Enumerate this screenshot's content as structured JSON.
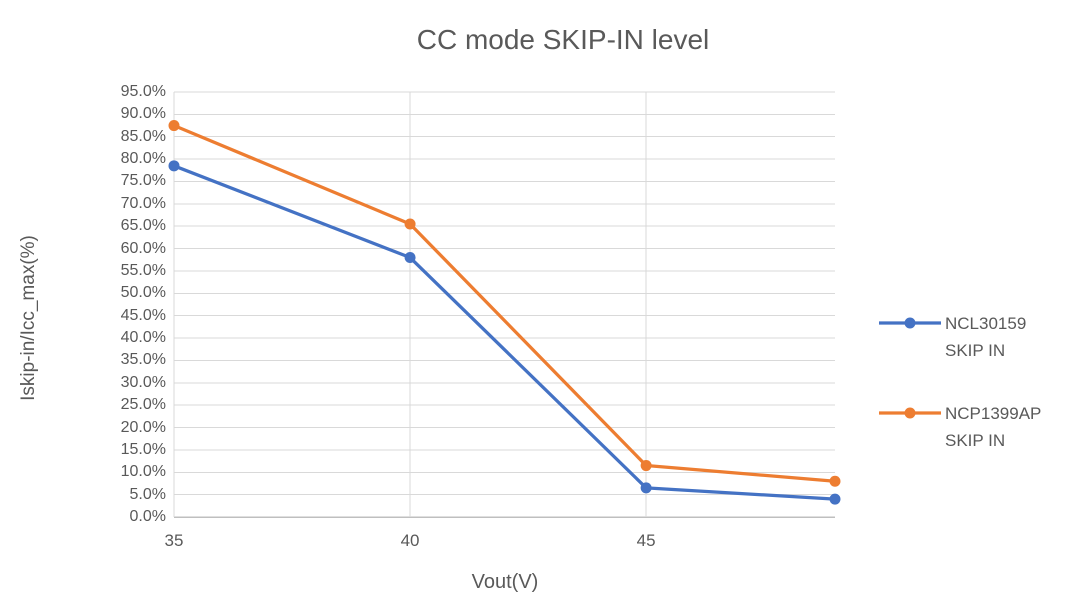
{
  "chart_data": {
    "type": "line",
    "title": "CC mode SKIP-IN level",
    "xlabel": "Vout(V)",
    "ylabel": "Iskip-in/Icc_max(%)",
    "xlim": [
      35,
      49
    ],
    "ylim": [
      0,
      95
    ],
    "x_tick_values": [
      35,
      40,
      45
    ],
    "x_tick_labels": [
      "35",
      "40",
      "45"
    ],
    "y_tick_step": 5,
    "y_tick_labels": [
      "0.0%",
      "5.0%",
      "10.0%",
      "15.0%",
      "20.0%",
      "25.0%",
      "30.0%",
      "35.0%",
      "40.0%",
      "45.0%",
      "50.0%",
      "55.0%",
      "60.0%",
      "65.0%",
      "70.0%",
      "75.0%",
      "80.0%",
      "85.0%",
      "90.0%",
      "95.0%"
    ],
    "grid": true,
    "legend_position": "right",
    "series": [
      {
        "name": "NCL30159 SKIP IN",
        "legend_lines": [
          "NCL30159",
          "SKIP IN"
        ],
        "color": "#4472C4",
        "x": [
          35,
          40,
          45,
          49
        ],
        "values": [
          78.5,
          58.0,
          6.5,
          4.0
        ]
      },
      {
        "name": "NCP1399AP SKIP IN",
        "legend_lines": [
          "NCP1399AP",
          "SKIP IN"
        ],
        "color": "#ED7D31",
        "x": [
          35,
          40,
          45,
          49
        ],
        "values": [
          87.5,
          65.5,
          11.5,
          8.0
        ]
      }
    ],
    "colors": {
      "grid": "#D9D9D9",
      "axis_line": "#BFBFBF",
      "text": "#595959"
    }
  }
}
